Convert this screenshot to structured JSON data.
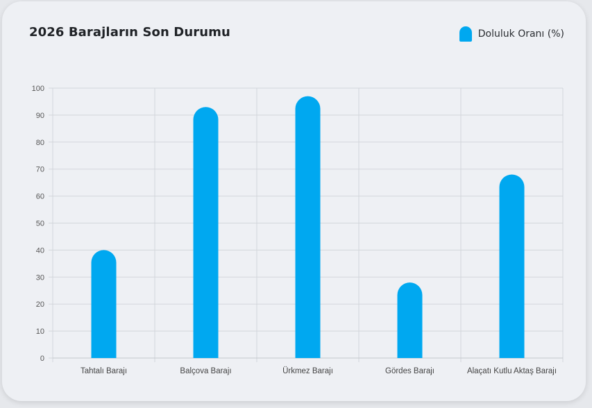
{
  "chart_data": {
    "type": "bar",
    "title": "2026 Barajların Son Durumu",
    "categories": [
      "Tahtalı Barajı",
      "Balçova Barajı",
      "Ürkmez Barajı",
      "Gördes Barajı",
      "Alaçatı Kutlu Aktaş Barajı"
    ],
    "series": [
      {
        "name": "Doluluk Oranı (%)",
        "values": [
          40,
          93,
          97,
          28,
          68
        ]
      }
    ],
    "ylim": [
      0,
      100
    ],
    "yticks": [
      0,
      10,
      20,
      30,
      40,
      50,
      60,
      70,
      80,
      90,
      100
    ],
    "grid": true,
    "legend_position": "top-right",
    "bar_color": "#00a8f0"
  }
}
